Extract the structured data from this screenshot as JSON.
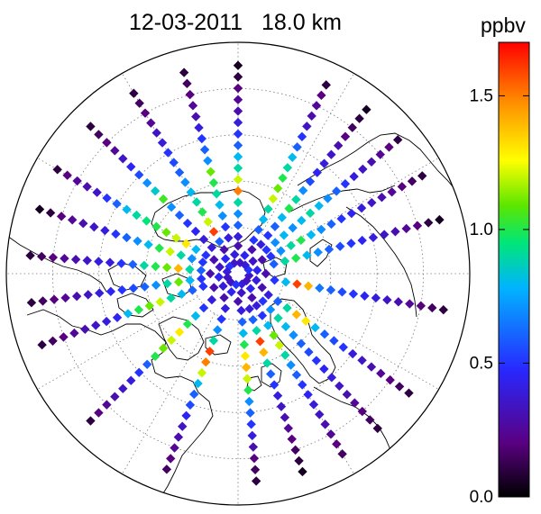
{
  "title": {
    "date": "12-03-2011",
    "altitude": "18.0 km"
  },
  "colorbar": {
    "unit": "ppbv",
    "ticks": [
      "0.0",
      "0.5",
      "1.0",
      "1.5"
    ],
    "tick_values": [
      0.0,
      0.5,
      1.0,
      1.5
    ],
    "range": [
      0.0,
      1.7
    ],
    "colors": [
      "#000000",
      "#5a0082",
      "#2828ff",
      "#00b4ff",
      "#00e678",
      "#5ae600",
      "#ffff00",
      "#ff9600",
      "#ff0000"
    ]
  },
  "chart_data": {
    "type": "scatter",
    "projection": "north-polar-stereographic",
    "title": "12-03-2011 18.0 km",
    "value_unit": "ppbv",
    "color_range": [
      0.0,
      1.7
    ],
    "grid": true,
    "note": "Satellite measurement tracks radiating from the North Pole; values estimated from the color scale.",
    "series": [
      {
        "lon": -150,
        "lat_start": 45,
        "lat_end": 82,
        "values": [
          0.1,
          0.15,
          0.2,
          0.25,
          0.35,
          0.4,
          0.5,
          0.55,
          0.6,
          0.7,
          0.8,
          0.9,
          1.0,
          1.2,
          1.6,
          0.6
        ]
      },
      {
        "lon": -120,
        "lat_start": 45,
        "lat_end": 82,
        "values": [
          0.1,
          0.2,
          0.25,
          0.3,
          0.35,
          0.5,
          0.6,
          0.8,
          0.9,
          0.95,
          1.0,
          1.1,
          1.2,
          1.3,
          0.8,
          0.5
        ]
      },
      {
        "lon": -95,
        "lat_start": 45,
        "lat_end": 82,
        "values": [
          0.1,
          0.15,
          0.2,
          0.25,
          0.3,
          0.35,
          0.4,
          0.4,
          0.5,
          0.6,
          0.9,
          1.0,
          1.1,
          1.4,
          0.9,
          0.6
        ]
      },
      {
        "lon": -70,
        "lat_start": 45,
        "lat_end": 82,
        "values": [
          0.1,
          0.15,
          0.2,
          0.25,
          0.3,
          0.35,
          0.4,
          0.45,
          0.8,
          1.0,
          1.1,
          1.2,
          0.9,
          0.8,
          0.6,
          0.5
        ]
      },
      {
        "lon": -45,
        "lat_start": 45,
        "lat_end": 82,
        "values": [
          0.1,
          0.2,
          0.25,
          0.3,
          0.35,
          0.4,
          0.5,
          0.6,
          1.0,
          1.1,
          1.2,
          1.3,
          1.0,
          0.8,
          0.5,
          0.4
        ]
      },
      {
        "lon": -20,
        "lat_start": 45,
        "lat_end": 82,
        "values": [
          0.15,
          0.2,
          0.25,
          0.3,
          0.35,
          0.45,
          0.55,
          0.6,
          0.8,
          1.2,
          1.5,
          1.6,
          0.9,
          0.7,
          0.5,
          0.4
        ]
      },
      {
        "lon": 5,
        "lat_start": 45,
        "lat_end": 82,
        "values": [
          0.1,
          0.15,
          0.2,
          0.3,
          0.4,
          0.5,
          0.6,
          0.7,
          1.0,
          1.2,
          1.4,
          1.3,
          1.0,
          0.8,
          0.6,
          0.4
        ]
      },
      {
        "lon": 30,
        "lat_start": 45,
        "lat_end": 82,
        "values": [
          0.15,
          0.2,
          0.25,
          0.3,
          0.35,
          0.4,
          0.45,
          0.5,
          0.6,
          0.7,
          0.9,
          1.2,
          1.1,
          0.8,
          0.5,
          0.4
        ]
      },
      {
        "lon": 55,
        "lat_start": 45,
        "lat_end": 82,
        "values": [
          0.1,
          0.15,
          0.2,
          0.25,
          0.3,
          0.35,
          0.4,
          0.5,
          0.55,
          0.6,
          0.8,
          1.3,
          1.4,
          0.9,
          0.6,
          0.4
        ]
      },
      {
        "lon": 80,
        "lat_start": 45,
        "lat_end": 82,
        "values": [
          0.1,
          0.15,
          0.2,
          0.25,
          0.3,
          0.35,
          0.4,
          0.45,
          0.5,
          0.55,
          0.6,
          0.65,
          1.4,
          1.6,
          0.8,
          0.5
        ]
      },
      {
        "lon": 105,
        "lat_start": 45,
        "lat_end": 82,
        "values": [
          0.05,
          0.1,
          0.2,
          0.25,
          0.3,
          0.35,
          0.4,
          0.45,
          0.5,
          0.55,
          0.6,
          0.7,
          0.8,
          1.0,
          0.9,
          0.6
        ]
      },
      {
        "lon": 130,
        "lat_start": 45,
        "lat_end": 82,
        "values": [
          0.1,
          0.2,
          0.25,
          0.3,
          0.35,
          0.4,
          0.5,
          0.6,
          0.7,
          0.8,
          0.9,
          0.8,
          0.7,
          0.8,
          0.7,
          0.5
        ]
      },
      {
        "lon": 155,
        "lat_start": 45,
        "lat_end": 82,
        "values": [
          0.1,
          0.2,
          0.25,
          0.3,
          0.35,
          0.5,
          0.6,
          0.8,
          0.9,
          1.0,
          1.1,
          1.2,
          0.9,
          0.8,
          0.6,
          0.5
        ]
      },
      {
        "lon": 180,
        "lat_start": 45,
        "lat_end": 82,
        "values": [
          0.05,
          0.1,
          0.2,
          0.25,
          0.3,
          0.4,
          0.5,
          0.6,
          0.8,
          0.9,
          1.2,
          1.5,
          0.9,
          0.7,
          0.6,
          0.4
        ]
      },
      {
        "lon": -165,
        "lat_start": 45,
        "lat_end": 82,
        "values": [
          0.1,
          0.15,
          0.2,
          0.25,
          0.3,
          0.4,
          0.5,
          0.6,
          0.7,
          1.1,
          1.0,
          0.9,
          0.8,
          0.7,
          0.5,
          0.4
        ]
      },
      {
        "lon": -135,
        "lat_start": 45,
        "lat_end": 82,
        "values": [
          0.1,
          0.15,
          0.2,
          0.25,
          0.35,
          0.45,
          0.55,
          0.7,
          0.85,
          1.05,
          0.7,
          0.6,
          0.5,
          0.45,
          0.4,
          0.4
        ]
      },
      {
        "lon": -108,
        "lat_start": 45,
        "lat_end": 82,
        "values": [
          0.05,
          0.1,
          0.2,
          0.25,
          0.3,
          0.35,
          0.4,
          0.5,
          0.6,
          0.7,
          0.8,
          1.0,
          1.2,
          0.9,
          0.7,
          0.5
        ]
      },
      {
        "lon": -82,
        "lat_start": 45,
        "lat_end": 82,
        "values": [
          0.1,
          0.15,
          0.2,
          0.25,
          0.3,
          0.35,
          0.4,
          0.45,
          0.5,
          0.55,
          0.6,
          0.7,
          0.9,
          1.1,
          0.8,
          0.5
        ]
      },
      {
        "lon": 18,
        "lat_start": 45,
        "lat_end": 82,
        "values": [
          0.05,
          0.1,
          0.15,
          0.2,
          0.25,
          0.3,
          0.35,
          0.4,
          0.5,
          0.6,
          0.9,
          1.4,
          1.6,
          0.9,
          0.6,
          0.4
        ]
      },
      {
        "lon": 42,
        "lat_start": 45,
        "lat_end": 82,
        "values": [
          0.1,
          0.15,
          0.2,
          0.25,
          0.3,
          0.35,
          0.4,
          0.45,
          0.5,
          0.55,
          0.6,
          0.7,
          0.8,
          0.9,
          0.7,
          0.5
        ]
      },
      {
        "lon": 118,
        "lat_start": 45,
        "lat_end": 82,
        "values": [
          0.1,
          0.15,
          0.2,
          0.25,
          0.3,
          0.35,
          0.4,
          0.45,
          0.5,
          0.6,
          0.7,
          0.8,
          1.0,
          0.9,
          0.7,
          0.5
        ]
      },
      {
        "lon": 142,
        "lat_start": 45,
        "lat_end": 82,
        "values": [
          0.05,
          0.1,
          0.15,
          0.2,
          0.3,
          0.35,
          0.4,
          0.45,
          0.55,
          0.7,
          0.9,
          1.0,
          0.8,
          0.6,
          0.5,
          0.4
        ]
      }
    ]
  }
}
